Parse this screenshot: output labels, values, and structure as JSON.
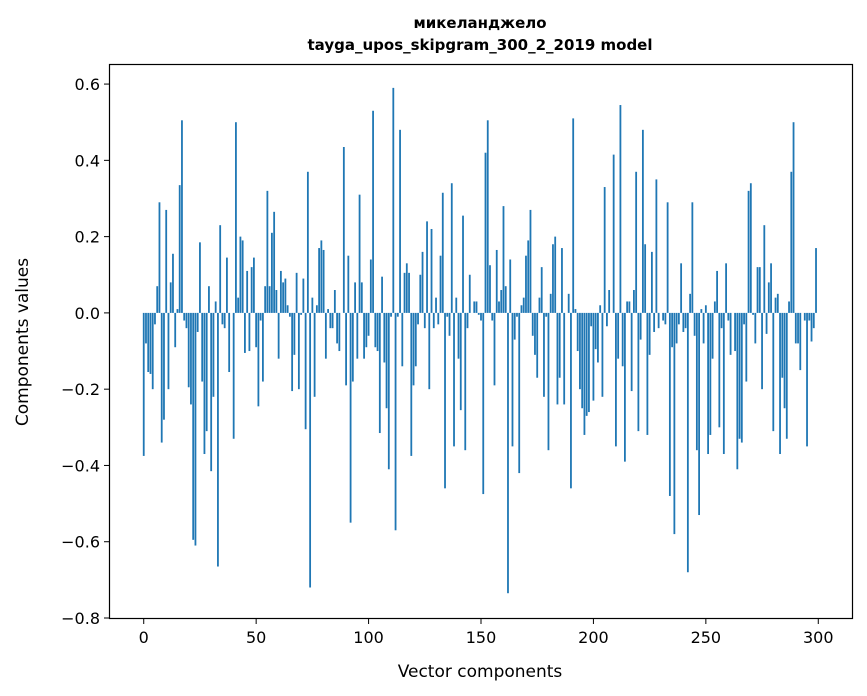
{
  "chart_data": {
    "type": "bar",
    "title": "микеланджело",
    "subtitle": "tayga_upos_skipgram_300_2_2019 model",
    "xlabel": "Vector components",
    "ylabel": "Components values",
    "xlim": [
      -15,
      315
    ],
    "ylim": [
      -0.8,
      0.65
    ],
    "xticks": [
      0,
      50,
      100,
      150,
      200,
      250,
      300
    ],
    "xtick_labels": [
      "0",
      "50",
      "100",
      "150",
      "200",
      "250",
      "300"
    ],
    "yticks": [
      -0.8,
      -0.6,
      -0.4,
      -0.2,
      0.0,
      0.2,
      0.4,
      0.6
    ],
    "ytick_labels": [
      "−0.8",
      "−0.6",
      "−0.4",
      "−0.2",
      "0.0",
      "0.2",
      "0.4",
      "0.6"
    ],
    "bar_color": "#1f77b4",
    "grid": false,
    "x": [
      0,
      1,
      2,
      3,
      4,
      5,
      6,
      7,
      8,
      9,
      10,
      11,
      12,
      13,
      14,
      15,
      16,
      17,
      18,
      19,
      20,
      21,
      22,
      23,
      24,
      25,
      26,
      27,
      28,
      29,
      30,
      31,
      32,
      33,
      34,
      35,
      36,
      37,
      38,
      39,
      40,
      41,
      42,
      43,
      44,
      45,
      46,
      47,
      48,
      49,
      50,
      51,
      52,
      53,
      54,
      55,
      56,
      57,
      58,
      59,
      60,
      61,
      62,
      63,
      64,
      65,
      66,
      67,
      68,
      69,
      70,
      71,
      72,
      73,
      74,
      75,
      76,
      77,
      78,
      79,
      80,
      81,
      82,
      83,
      84,
      85,
      86,
      87,
      88,
      89,
      90,
      91,
      92,
      93,
      94,
      95,
      96,
      97,
      98,
      99,
      100,
      101,
      102,
      103,
      104,
      105,
      106,
      107,
      108,
      109,
      110,
      111,
      112,
      113,
      114,
      115,
      116,
      117,
      118,
      119,
      120,
      121,
      122,
      123,
      124,
      125,
      126,
      127,
      128,
      129,
      130,
      131,
      132,
      133,
      134,
      135,
      136,
      137,
      138,
      139,
      140,
      141,
      142,
      143,
      144,
      145,
      146,
      147,
      148,
      149,
      150,
      151,
      152,
      153,
      154,
      155,
      156,
      157,
      158,
      159,
      160,
      161,
      162,
      163,
      164,
      165,
      166,
      167,
      168,
      169,
      170,
      171,
      172,
      173,
      174,
      175,
      176,
      177,
      178,
      179,
      180,
      181,
      182,
      183,
      184,
      185,
      186,
      187,
      188,
      189,
      190,
      191,
      192,
      193,
      194,
      195,
      196,
      197,
      198,
      199,
      200,
      201,
      202,
      203,
      204,
      205,
      206,
      207,
      208,
      209,
      210,
      211,
      212,
      213,
      214,
      215,
      216,
      217,
      218,
      219,
      220,
      221,
      222,
      223,
      224,
      225,
      226,
      227,
      228,
      229,
      230,
      231,
      232,
      233,
      234,
      235,
      236,
      237,
      238,
      239,
      240,
      241,
      242,
      243,
      244,
      245,
      246,
      247,
      248,
      249,
      250,
      251,
      252,
      253,
      254,
      255,
      256,
      257,
      258,
      259,
      260,
      261,
      262,
      263,
      264,
      265,
      266,
      267,
      268,
      269,
      270,
      271,
      272,
      273,
      274,
      275,
      276,
      277,
      278,
      279,
      280,
      281,
      282,
      283,
      284,
      285,
      286,
      287,
      288,
      289,
      290,
      291,
      292,
      293,
      294,
      295,
      296,
      297,
      298,
      299
    ],
    "values": [
      -0.375,
      -0.08,
      -0.155,
      -0.16,
      -0.2,
      -0.03,
      0.07,
      0.29,
      -0.34,
      -0.28,
      0.27,
      -0.2,
      0.08,
      0.155,
      -0.09,
      0.01,
      0.335,
      0.505,
      -0.02,
      -0.04,
      -0.195,
      -0.24,
      -0.595,
      -0.61,
      -0.05,
      0.185,
      -0.18,
      -0.37,
      -0.31,
      0.07,
      -0.415,
      -0.22,
      0.03,
      -0.665,
      0.23,
      -0.03,
      -0.04,
      0.145,
      -0.155,
      0.0,
      -0.33,
      0.5,
      0.04,
      0.2,
      0.19,
      -0.105,
      0.11,
      -0.1,
      0.12,
      0.145,
      -0.09,
      -0.245,
      -0.02,
      -0.18,
      0.07,
      0.32,
      0.07,
      0.21,
      0.265,
      0.06,
      -0.12,
      0.11,
      0.08,
      0.09,
      0.02,
      -0.01,
      -0.205,
      -0.11,
      0.105,
      -0.2,
      -0.005,
      0.09,
      -0.305,
      0.37,
      -0.72,
      0.04,
      -0.22,
      0.02,
      0.17,
      0.19,
      0.165,
      -0.12,
      0.01,
      -0.04,
      -0.04,
      0.06,
      -0.08,
      -0.1,
      0.0,
      0.435,
      -0.19,
      0.15,
      -0.55,
      -0.18,
      0.08,
      -0.12,
      0.31,
      0.08,
      -0.12,
      -0.09,
      -0.06,
      0.14,
      0.53,
      -0.09,
      -0.1,
      -0.315,
      0.095,
      -0.13,
      -0.25,
      -0.41,
      -0.01,
      0.59,
      -0.57,
      -0.01,
      0.48,
      -0.14,
      0.105,
      0.13,
      0.105,
      -0.375,
      -0.19,
      -0.14,
      -0.03,
      0.1,
      0.16,
      -0.04,
      0.24,
      -0.2,
      0.22,
      -0.04,
      0.04,
      -0.03,
      0.15,
      0.315,
      -0.46,
      -0.01,
      -0.06,
      0.34,
      -0.35,
      0.04,
      -0.12,
      -0.255,
      0.255,
      -0.36,
      -0.04,
      0.1,
      0.0,
      0.03,
      0.03,
      -0.005,
      -0.02,
      -0.475,
      0.42,
      0.505,
      0.125,
      -0.02,
      -0.19,
      0.165,
      0.03,
      0.06,
      0.28,
      0.07,
      -0.735,
      0.14,
      -0.35,
      -0.07,
      -0.01,
      -0.42,
      0.02,
      0.04,
      0.15,
      0.19,
      0.27,
      -0.06,
      -0.11,
      -0.17,
      0.04,
      0.12,
      -0.22,
      -0.01,
      -0.36,
      0.05,
      0.18,
      0.2,
      -0.24,
      -0.17,
      0.17,
      -0.24,
      0.0,
      0.05,
      -0.46,
      0.51,
      0.01,
      -0.1,
      -0.2,
      -0.25,
      -0.32,
      -0.27,
      -0.26,
      -0.035,
      -0.23,
      -0.095,
      -0.13,
      0.02,
      -0.22,
      0.33,
      -0.035,
      0.06,
      0.0,
      0.415,
      -0.35,
      -0.12,
      0.545,
      -0.14,
      -0.39,
      0.03,
      0.03,
      -0.205,
      0.06,
      0.37,
      -0.31,
      -0.07,
      0.48,
      0.18,
      -0.32,
      -0.11,
      0.16,
      -0.05,
      0.35,
      -0.04,
      0.0,
      -0.02,
      -0.03,
      0.29,
      -0.48,
      -0.09,
      -0.58,
      -0.08,
      -0.03,
      0.13,
      -0.05,
      -0.04,
      -0.68,
      0.05,
      0.29,
      -0.06,
      -0.36,
      -0.53,
      0.01,
      -0.08,
      0.02,
      -0.37,
      -0.32,
      -0.12,
      0.03,
      0.11,
      -0.3,
      -0.04,
      -0.37,
      0.13,
      -0.02,
      -0.11,
      0.0,
      -0.1,
      -0.41,
      -0.33,
      -0.34,
      -0.03,
      -0.18,
      0.32,
      0.34,
      -0.005,
      -0.08,
      0.12,
      0.12,
      -0.2,
      0.23,
      -0.055,
      0.08,
      0.13,
      -0.31,
      0.04,
      0.05,
      -0.37,
      -0.17,
      -0.25,
      -0.33,
      0.03,
      0.37,
      0.5,
      -0.08,
      -0.08,
      -0.15,
      0.0,
      -0.02,
      -0.35,
      -0.02,
      -0.075,
      -0.04,
      0.17
    ]
  }
}
